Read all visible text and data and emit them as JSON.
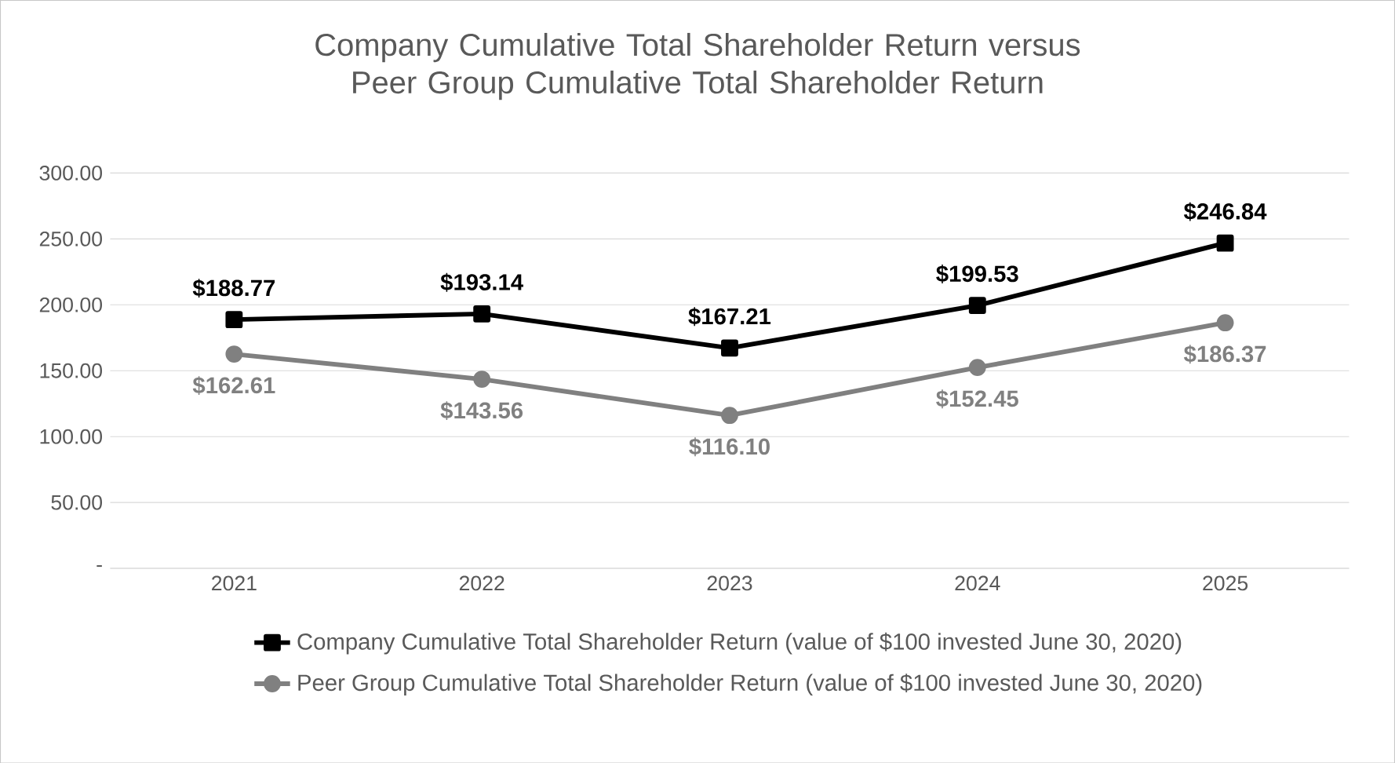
{
  "chart_data": {
    "type": "line",
    "title": "Company Cumulative Total Shareholder Return versus Peer Group Cumulative Total Shareholder Return",
    "categories": [
      "2021",
      "2022",
      "2023",
      "2024",
      "2025"
    ],
    "series": [
      {
        "name": "Company Cumulative Total Shareholder Return (value of $100 invested June 30, 2020)",
        "color": "#000000",
        "marker": "square",
        "values": [
          188.77,
          193.14,
          167.21,
          199.53,
          246.84
        ],
        "value_labels": [
          "$188.77",
          "$193.14",
          "$167.21",
          "$199.53",
          "$246.84"
        ]
      },
      {
        "name": "Peer Group Cumulative Total Shareholder Return (value of $100 invested June 30, 2020)",
        "color": "#808080",
        "marker": "circle",
        "values": [
          162.61,
          143.56,
          116.1,
          152.45,
          186.37
        ],
        "value_labels": [
          "$162.61",
          "$143.56",
          "$116.10",
          "$152.45",
          "$186.37"
        ]
      }
    ],
    "ylim": [
      0,
      300
    ],
    "yticks": [
      {
        "value": 0,
        "label": "-"
      },
      {
        "value": 50,
        "label": "50.00"
      },
      {
        "value": 100,
        "label": "100.00"
      },
      {
        "value": 150,
        "label": "150.00"
      },
      {
        "value": 200,
        "label": "200.00"
      },
      {
        "value": 250,
        "label": "250.00"
      },
      {
        "value": 300,
        "label": "300.00"
      }
    ],
    "grid": "y",
    "legend": "bottom"
  }
}
